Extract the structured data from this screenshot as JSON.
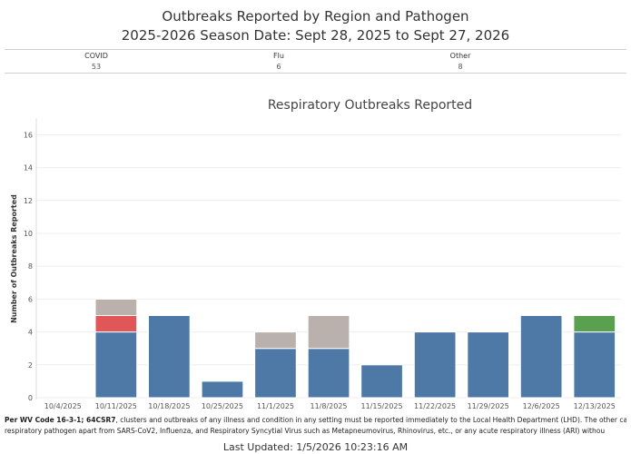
{
  "header": {
    "title_line1": "Outbreaks Reported by Region and Pathogen",
    "title_line2": "2025-2026 Season Date: Sept 28, 2025 to Sept 27, 2026"
  },
  "summary": [
    {
      "label": "COVID",
      "value": "53"
    },
    {
      "label": "Flu",
      "value": "6"
    },
    {
      "label": "Other",
      "value": "8"
    }
  ],
  "chart_data": {
    "type": "bar",
    "stacked": true,
    "title": "Respiratory Outbreaks Reported",
    "xlabel": "",
    "ylabel": "Number of Outbreaks Reported",
    "ylim": [
      0,
      17
    ],
    "yticks": [
      0,
      2,
      4,
      6,
      8,
      10,
      12,
      14,
      16
    ],
    "categories": [
      "10/4/2025",
      "10/11/2025",
      "10/18/2025",
      "10/25/2025",
      "11/1/2025",
      "11/8/2025",
      "11/15/2025",
      "11/22/2025",
      "11/29/2025",
      "12/6/2025",
      "12/13/2025"
    ],
    "series": [
      {
        "name": "COVID",
        "color": "#4e79a7",
        "values": [
          0,
          4,
          5,
          1,
          3,
          3,
          2,
          4,
          4,
          5,
          4
        ]
      },
      {
        "name": "Flu",
        "color": "#e15759",
        "values": [
          0,
          1,
          0,
          0,
          0,
          0,
          0,
          0,
          0,
          0,
          0
        ]
      },
      {
        "name": "Other",
        "color": "#bab0ac",
        "values": [
          0,
          1,
          0,
          0,
          1,
          2,
          0,
          0,
          0,
          0,
          0
        ]
      },
      {
        "name": "Other (green)",
        "color": "#59a14f",
        "values": [
          0,
          0,
          0,
          0,
          0,
          0,
          0,
          0,
          0,
          0,
          1
        ]
      }
    ]
  },
  "footer": {
    "line1_bold": "Per WV Code 16-3-1; 64CSR7",
    "line1_rest": ", clusters and outbreaks of any illness and condition in any setting must be reported immediately to the Local Health Department (LHD). The other ca",
    "line2": "respiratory pathogen apart from SARS-CoV2, Influenza, and Respiratory Syncytial Virus such as Metapneumovirus, Rhinovirus, etc., or any acute respiratory illness (ARI) withou",
    "last_updated": "Last Updated: 1/5/2026 10:23:16 AM"
  }
}
